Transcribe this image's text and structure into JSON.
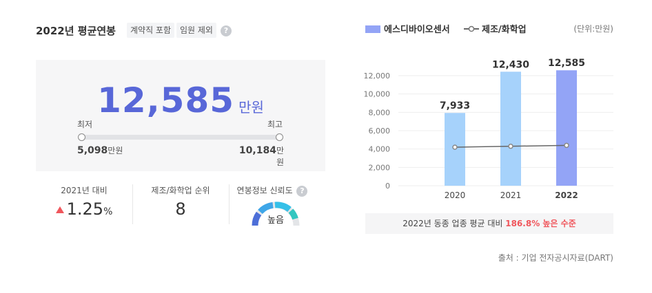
{
  "header": {
    "title": "2022년 평균연봉",
    "tags": [
      "계약직 포함",
      "임원 제외"
    ],
    "help_glyph": "?"
  },
  "summary": {
    "value": "12,585",
    "unit": "만원",
    "min_label": "최저",
    "max_label": "최고",
    "min_value": "5,098",
    "max_value": "10,184",
    "range_unit": "만원"
  },
  "stats": {
    "yoy_label": "2021년 대비",
    "yoy_value": "1.25",
    "yoy_unit": "%",
    "yoy_direction": "up",
    "rank_label": "제조/화학업 순위",
    "rank_value": "8",
    "reliability_label": "연봉정보 신뢰도",
    "reliability_value": "높음"
  },
  "legend": {
    "series1": "에스디바이오센서",
    "series2": "제조/화학업",
    "unit": "(단위:만원)"
  },
  "note": {
    "prefix": "2022년 동종 업종 평균 대비 ",
    "highlight": "186.8% 높은 수준"
  },
  "source": "출처 : 기업 전자공시자료(DART)",
  "colors": {
    "accent": "#5867d8",
    "bar_past": "#a6d2fb",
    "bar_current": "#93a4f6",
    "line": "#666666",
    "up": "#f0565c"
  },
  "chart_data": {
    "type": "bar",
    "categories": [
      "2020",
      "2021",
      "2022"
    ],
    "series": [
      {
        "name": "에스디바이오센서",
        "values": [
          7933,
          12430,
          12585
        ],
        "labels": [
          "7,933",
          "12,430",
          "12,585"
        ]
      },
      {
        "name": "제조/화학업",
        "values": [
          4200,
          4300,
          4400
        ],
        "type": "line"
      }
    ],
    "ylim": [
      0,
      12000
    ],
    "yticks": [
      0,
      2000,
      4000,
      6000,
      8000,
      10000,
      12000
    ],
    "ytick_labels": [
      "0",
      "2,000",
      "4,000",
      "6,000",
      "8,000",
      "10,000",
      "12,000"
    ],
    "grid": true
  }
}
